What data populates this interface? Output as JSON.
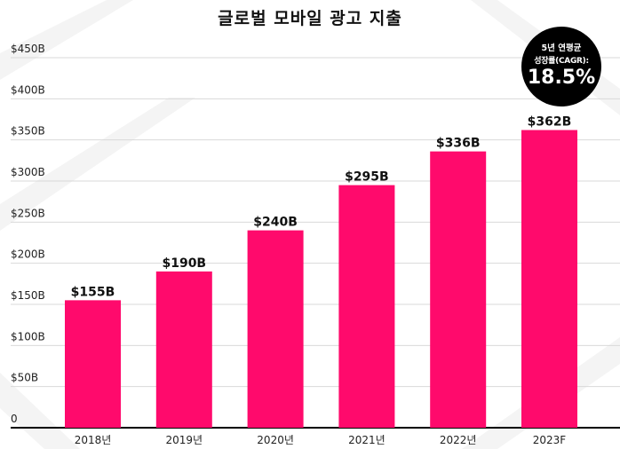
{
  "chart_data": {
    "type": "bar",
    "title": "글로벌 모바일 광고 지출",
    "categories": [
      "2018년",
      "2019년",
      "2020년",
      "2021년",
      "2022년",
      "2023F"
    ],
    "values": [
      155,
      190,
      240,
      295,
      336,
      362
    ],
    "data_labels": [
      "$155B",
      "$190B",
      "$240B",
      "$295B",
      "$336B",
      "$362B"
    ],
    "y_ticks": [
      0,
      50,
      100,
      150,
      200,
      250,
      300,
      350,
      400,
      450
    ],
    "y_tick_labels": [
      "0",
      "$50B",
      "$100B",
      "$150B",
      "$200B",
      "$250B",
      "$300B",
      "$350B",
      "$400B",
      "$450B"
    ],
    "ylim": [
      0,
      450
    ],
    "grid": true,
    "bar_color": "#ff0a6c",
    "xlabel": "",
    "ylabel": ""
  },
  "cagr_badge": {
    "line1": "5년 연평균",
    "line2": "성장률(CAGR):",
    "value": "18.5%"
  }
}
